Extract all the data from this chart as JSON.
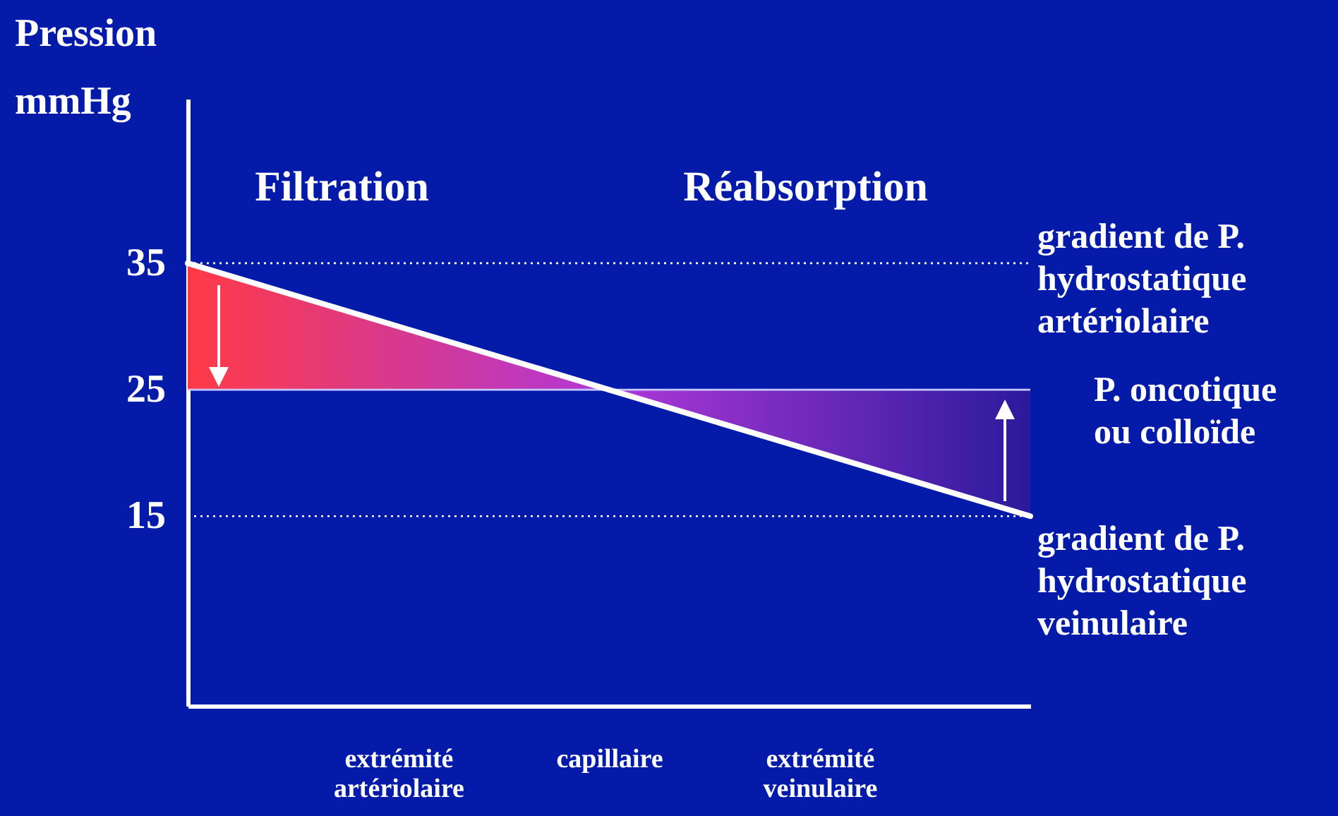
{
  "chart_data": {
    "type": "line",
    "ylabel": "Pression mmHg",
    "categories": [
      null,
      "extrémité\nartériolaire",
      "capillaire",
      "extrémité\nveinulaire",
      null
    ],
    "ylim": [
      0,
      48
    ],
    "yticks": [
      15,
      25,
      35
    ],
    "series": [
      {
        "values": [
          35,
          30,
          25,
          20,
          15
        ],
        "color": "#ffffff"
      }
    ],
    "ref_lines": [
      {
        "axis": "y",
        "value": 35,
        "label": "gradient de P.\nhydrostatique\nartériolaire",
        "line_style": "dotted",
        "color": "#ffffff"
      },
      {
        "axis": "y",
        "value": 25,
        "label": "P. oncotique\nou colloïde",
        "line_style": "solid",
        "color": "#c8c8ff"
      },
      {
        "axis": "y",
        "value": 15,
        "label": "gradient de P.\nhydrostatique\nveinulaire",
        "line_style": "dotted",
        "color": "#ffffff"
      }
    ],
    "annotations": [
      "Filtration",
      "Réabsorption"
    ],
    "grid": false,
    "marker": "none",
    "line_style": "solid"
  }
}
